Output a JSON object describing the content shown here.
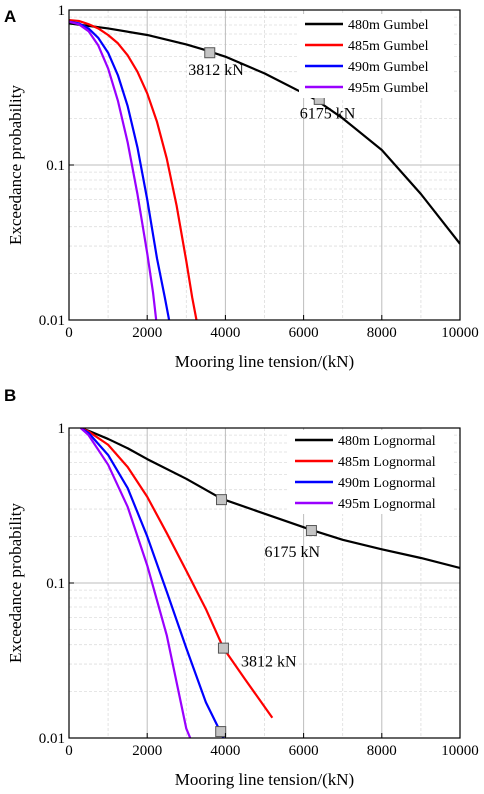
{
  "chart_data": [
    {
      "type": "line",
      "panel_label": "A",
      "xlabel": "Mooring line tension/(kN)",
      "ylabel": "Exceedance probability",
      "xlim": [
        0,
        10000
      ],
      "ylim": [
        0.01,
        1
      ],
      "yscale": "log",
      "xticks": [
        0,
        2000,
        4000,
        6000,
        8000,
        10000
      ],
      "xtick_labels": [
        "0",
        "2000",
        "4000",
        "6000",
        "8000",
        "10000"
      ],
      "yticks": [
        0.01,
        0.1,
        1
      ],
      "ytick_labels": [
        "0.01",
        "0.1",
        "1"
      ],
      "grid": true,
      "legend_position": "top-right",
      "series": [
        {
          "name": "480m Gumbel",
          "color": "#000000",
          "x": [
            0,
            1000,
            2000,
            3000,
            3500,
            4000,
            5000,
            6000,
            6300,
            7000,
            8000,
            9000,
            10000
          ],
          "y": [
            0.82,
            0.76,
            0.69,
            0.6,
            0.55,
            0.5,
            0.39,
            0.29,
            0.265,
            0.2,
            0.125,
            0.065,
            0.031
          ]
        },
        {
          "name": "485m Gumbel",
          "color": "#ff0000",
          "x": [
            0,
            250,
            500,
            750,
            1000,
            1250,
            1500,
            1750,
            2000,
            2250,
            2500,
            2750,
            3000,
            3150,
            3260
          ],
          "y": [
            0.86,
            0.85,
            0.81,
            0.76,
            0.69,
            0.61,
            0.51,
            0.4,
            0.29,
            0.19,
            0.11,
            0.055,
            0.024,
            0.014,
            0.01
          ]
        },
        {
          "name": "490m Gumbel",
          "color": "#0000ff",
          "x": [
            0,
            250,
            500,
            750,
            1000,
            1250,
            1500,
            1750,
            2000,
            2250,
            2450,
            2560
          ],
          "y": [
            0.84,
            0.82,
            0.76,
            0.66,
            0.53,
            0.38,
            0.24,
            0.13,
            0.06,
            0.025,
            0.014,
            0.01
          ]
        },
        {
          "name": "495m Gumbel",
          "color": "#9900ff",
          "x": [
            0,
            250,
            500,
            750,
            1000,
            1250,
            1500,
            1750,
            2000,
            2150,
            2230
          ],
          "y": [
            0.84,
            0.81,
            0.73,
            0.59,
            0.42,
            0.26,
            0.14,
            0.065,
            0.027,
            0.015,
            0.01
          ]
        }
      ],
      "markers": [
        {
          "x": 3600,
          "y": 0.53
        },
        {
          "x": 6400,
          "y": 0.265
        }
      ],
      "annotations": [
        {
          "text": "3812 kN",
          "x": 3050,
          "y": 0.38
        },
        {
          "text": "6175 kN",
          "x": 5900,
          "y": 0.2
        }
      ]
    },
    {
      "type": "line",
      "panel_label": "B",
      "xlabel": "Mooring line tension/(kN)",
      "ylabel": "Exceedance probability",
      "xlim": [
        0,
        10000
      ],
      "ylim": [
        0.01,
        1
      ],
      "yscale": "log",
      "xticks": [
        0,
        2000,
        4000,
        6000,
        8000,
        10000
      ],
      "xtick_labels": [
        "0",
        "2000",
        "4000",
        "6000",
        "8000",
        "10000"
      ],
      "yticks": [
        0.01,
        0.1,
        1
      ],
      "ytick_labels": [
        "0.01",
        "0.1",
        "1"
      ],
      "grid": true,
      "legend_position": "top-right",
      "series": [
        {
          "name": "480m Lognormal",
          "color": "#000000",
          "x": [
            300,
            500,
            1000,
            1500,
            2000,
            3000,
            3900,
            5000,
            6200,
            7000,
            8000,
            9000,
            10000
          ],
          "y": [
            1.0,
            0.96,
            0.85,
            0.74,
            0.63,
            0.47,
            0.35,
            0.28,
            0.22,
            0.19,
            0.165,
            0.145,
            0.125
          ]
        },
        {
          "name": "485m Lognormal",
          "color": "#ff0000",
          "x": [
            300,
            500,
            1000,
            1500,
            2000,
            2500,
            3000,
            3500,
            3950,
            4500,
            5200
          ],
          "y": [
            1.0,
            0.95,
            0.78,
            0.56,
            0.36,
            0.21,
            0.12,
            0.068,
            0.038,
            0.024,
            0.0135
          ]
        },
        {
          "name": "490m Lognormal",
          "color": "#0000ff",
          "x": [
            300,
            500,
            1000,
            1500,
            2000,
            2500,
            3000,
            3500,
            3950
          ],
          "y": [
            1.0,
            0.93,
            0.67,
            0.41,
            0.2,
            0.088,
            0.038,
            0.017,
            0.0098
          ]
        },
        {
          "name": "495m Lognormal",
          "color": "#9900ff",
          "x": [
            300,
            500,
            1000,
            1500,
            2000,
            2500,
            3000,
            3100
          ],
          "y": [
            1.0,
            0.9,
            0.58,
            0.31,
            0.13,
            0.046,
            0.0115,
            0.009
          ]
        }
      ],
      "markers": [
        {
          "x": 3900,
          "y": 0.345
        },
        {
          "x": 6200,
          "y": 0.218
        },
        {
          "x": 3950,
          "y": 0.038
        },
        {
          "x": 3880,
          "y": 0.011
        }
      ],
      "annotations": [
        {
          "text": "6175 kN",
          "x": 5000,
          "y": 0.147
        },
        {
          "text": "3812 kN",
          "x": 4400,
          "y": 0.029
        }
      ]
    }
  ]
}
